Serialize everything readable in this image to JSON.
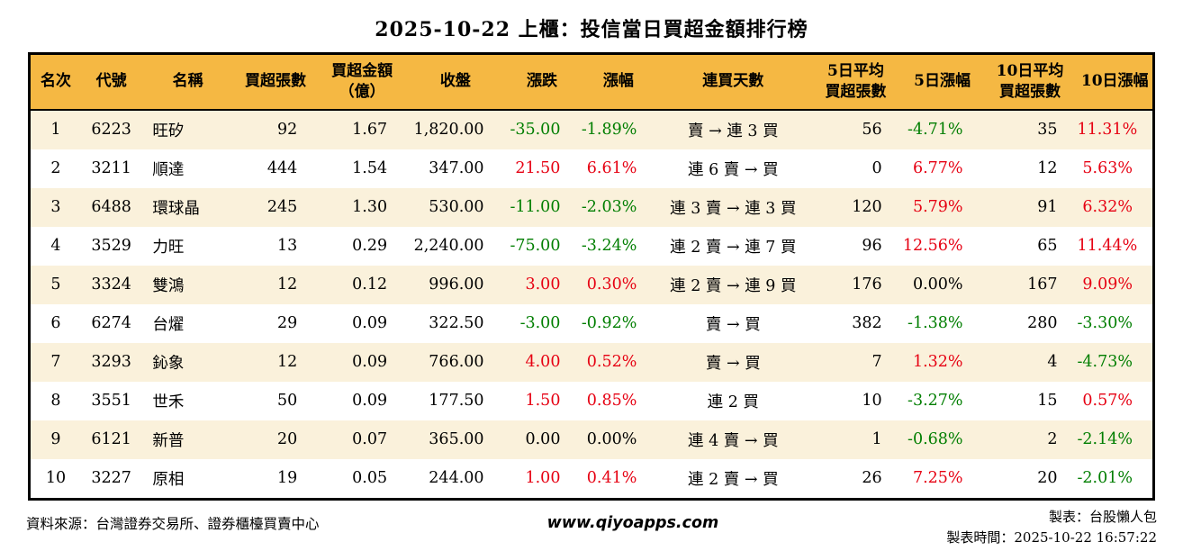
{
  "title": "2025-10-22 上櫃：投信當日買超金額排行榜",
  "colors": {
    "header_bg": "#F5B843",
    "row_alt_bg": "#FAF1DB",
    "up_red": "#E60012",
    "down_green": "#007E00",
    "border": "#000000"
  },
  "chart_data": {
    "type": "table",
    "title": "2025-10-22 上櫃：投信當日買超金額排行榜",
    "columns": [
      {
        "key": "rank",
        "lines": [
          "名次"
        ]
      },
      {
        "key": "code",
        "lines": [
          "代號"
        ]
      },
      {
        "key": "name",
        "lines": [
          "名稱"
        ]
      },
      {
        "key": "net-buy-shares",
        "lines": [
          "買超張數"
        ]
      },
      {
        "key": "net-buy-amount",
        "lines": [
          "買超金額",
          "（億）"
        ]
      },
      {
        "key": "close",
        "lines": [
          "收盤"
        ]
      },
      {
        "key": "change",
        "lines": [
          "漲跌"
        ]
      },
      {
        "key": "change-pct",
        "lines": [
          "漲幅"
        ]
      },
      {
        "key": "streak",
        "lines": [
          "連買天數"
        ]
      },
      {
        "key": "avg5-shares",
        "lines": [
          "5日平均",
          "買超張數"
        ]
      },
      {
        "key": "pct5",
        "lines": [
          "5日漲幅"
        ]
      },
      {
        "key": "avg10-shares",
        "lines": [
          "10日平均",
          "買超張數"
        ]
      },
      {
        "key": "pct10",
        "lines": [
          "10日漲幅"
        ]
      }
    ],
    "rows": [
      [
        "1",
        "6223",
        "旺矽",
        "92",
        "1.67",
        "1,820.00",
        {
          "v": "-35.00",
          "c": "down"
        },
        {
          "v": "-1.89%",
          "c": "down"
        },
        "賣 → 連 3 買",
        "56",
        {
          "v": "-4.71%",
          "c": "down"
        },
        "35",
        {
          "v": "11.31%",
          "c": "up"
        }
      ],
      [
        "2",
        "3211",
        "順達",
        "444",
        "1.54",
        "347.00",
        {
          "v": "21.50",
          "c": "up"
        },
        {
          "v": "6.61%",
          "c": "up"
        },
        "連 6 賣 → 買",
        "0",
        {
          "v": "6.77%",
          "c": "up"
        },
        "12",
        {
          "v": "5.63%",
          "c": "up"
        }
      ],
      [
        "3",
        "6488",
        "環球晶",
        "245",
        "1.30",
        "530.00",
        {
          "v": "-11.00",
          "c": "down"
        },
        {
          "v": "-2.03%",
          "c": "down"
        },
        "連 3 賣 → 連 3 買",
        "120",
        {
          "v": "5.79%",
          "c": "up"
        },
        "91",
        {
          "v": "6.32%",
          "c": "up"
        }
      ],
      [
        "4",
        "3529",
        "力旺",
        "13",
        "0.29",
        "2,240.00",
        {
          "v": "-75.00",
          "c": "down"
        },
        {
          "v": "-3.24%",
          "c": "down"
        },
        "連 2 賣 → 連 7 買",
        "96",
        {
          "v": "12.56%",
          "c": "up"
        },
        "65",
        {
          "v": "11.44%",
          "c": "up"
        }
      ],
      [
        "5",
        "3324",
        "雙鴻",
        "12",
        "0.12",
        "996.00",
        {
          "v": "3.00",
          "c": "up"
        },
        {
          "v": "0.30%",
          "c": "up"
        },
        "連 2 賣 → 連 9 買",
        "176",
        "0.00%",
        "167",
        {
          "v": "9.09%",
          "c": "up"
        }
      ],
      [
        "6",
        "6274",
        "台燿",
        "29",
        "0.09",
        "322.50",
        {
          "v": "-3.00",
          "c": "down"
        },
        {
          "v": "-0.92%",
          "c": "down"
        },
        "賣 → 買",
        "382",
        {
          "v": "-1.38%",
          "c": "down"
        },
        "280",
        {
          "v": "-3.30%",
          "c": "down"
        }
      ],
      [
        "7",
        "3293",
        "鈊象",
        "12",
        "0.09",
        "766.00",
        {
          "v": "4.00",
          "c": "up"
        },
        {
          "v": "0.52%",
          "c": "up"
        },
        "賣 → 買",
        "7",
        {
          "v": "1.32%",
          "c": "up"
        },
        "4",
        {
          "v": "-4.73%",
          "c": "down"
        }
      ],
      [
        "8",
        "3551",
        "世禾",
        "50",
        "0.09",
        "177.50",
        {
          "v": "1.50",
          "c": "up"
        },
        {
          "v": "0.85%",
          "c": "up"
        },
        "連 2 買",
        "10",
        {
          "v": "-3.27%",
          "c": "down"
        },
        "15",
        {
          "v": "0.57%",
          "c": "up"
        }
      ],
      [
        "9",
        "6121",
        "新普",
        "20",
        "0.07",
        "365.00",
        "0.00",
        "0.00%",
        "連 4 賣 → 買",
        "1",
        {
          "v": "-0.68%",
          "c": "down"
        },
        "2",
        {
          "v": "-2.14%",
          "c": "down"
        }
      ],
      [
        "10",
        "3227",
        "原相",
        "19",
        "0.05",
        "244.00",
        {
          "v": "1.00",
          "c": "up"
        },
        {
          "v": "0.41%",
          "c": "up"
        },
        "連 2 賣 → 買",
        "26",
        {
          "v": "7.25%",
          "c": "up"
        },
        "20",
        {
          "v": "-2.01%",
          "c": "down"
        }
      ]
    ]
  },
  "footer": {
    "source": "資料來源：台灣證券交易所、證券櫃檯買賣中心",
    "website": "www.qiyoapps.com",
    "author": "製表：台股懶人包",
    "timestamp": "製表時間：2025-10-22 16:57:22"
  }
}
